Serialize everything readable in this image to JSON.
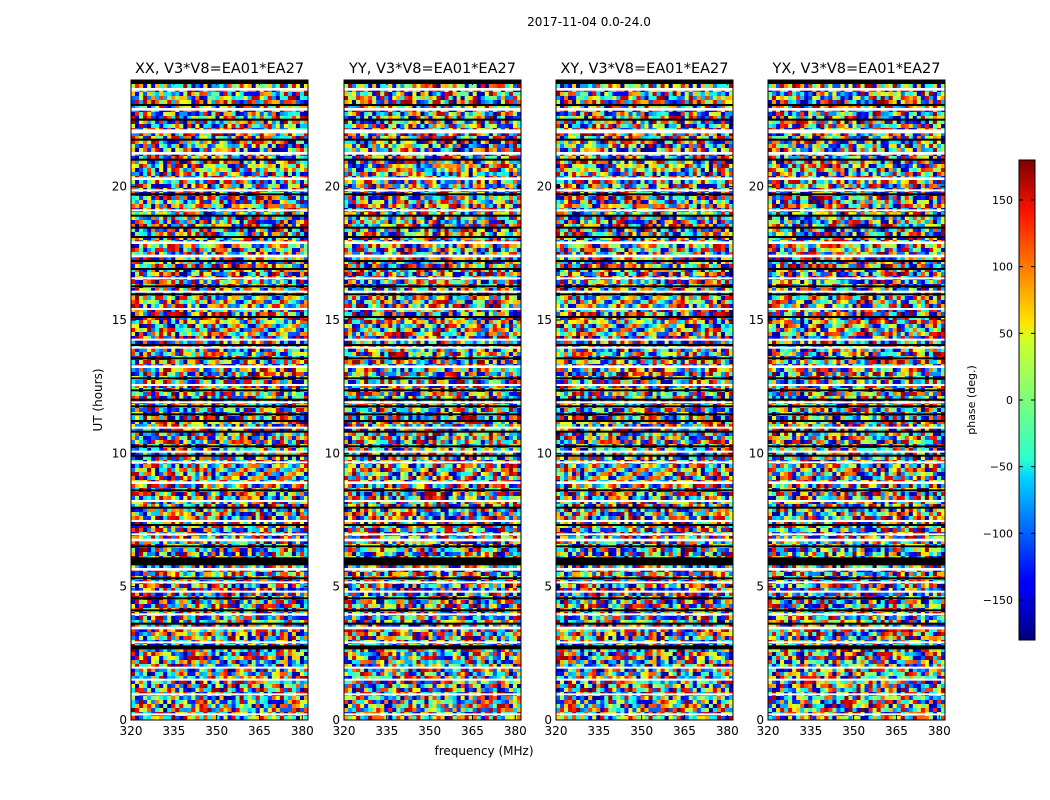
{
  "figure_title": "2017-11-04 0.0-24.0",
  "colors": {
    "background": "#ffffff",
    "axis": "#000000",
    "flag_white": "#ffffff",
    "flag_black": "#000000"
  },
  "chart_data": {
    "type": "heatmap",
    "title": "2017-11-04 0.0-24.0",
    "xlabel": "frequency (MHz)",
    "ylabel": "UT (hours)",
    "xlim": [
      320,
      382
    ],
    "ylim": [
      0,
      24
    ],
    "xticks": [
      320,
      335,
      350,
      365,
      380
    ],
    "yticks": [
      0,
      5,
      10,
      15,
      20
    ],
    "colormap": "jet",
    "colorbar": {
      "label": "phase (deg.)",
      "range": [
        -180,
        180
      ],
      "ticks": [
        150,
        100,
        50,
        0,
        -50,
        -100,
        -150
      ],
      "tick_labels": [
        "150",
        "100",
        "50",
        "0",
        "−50",
        "−100",
        "−150"
      ]
    },
    "panels": [
      {
        "title": "XX, V3*V8=EA01*EA27",
        "show_ylabel": true,
        "show_xlabel": false
      },
      {
        "title": "YY, V3*V8=EA01*EA27",
        "show_ylabel": false,
        "show_xlabel": true
      },
      {
        "title": "XY, V3*V8=EA01*EA27",
        "show_ylabel": false,
        "show_xlabel": false
      },
      {
        "title": "YX, V3*V8=EA01*EA27",
        "show_ylabel": false,
        "show_xlabel": false
      }
    ],
    "flagged_black_ut": [
      [
        23.85,
        24.0
      ],
      [
        23.05,
        23.1
      ],
      [
        22.5,
        22.55
      ],
      [
        21.75,
        21.8
      ],
      [
        21.0,
        21.05
      ],
      [
        19.7,
        19.75
      ],
      [
        18.9,
        18.95
      ],
      [
        18.45,
        18.5
      ],
      [
        18.1,
        18.15
      ],
      [
        17.2,
        17.25
      ],
      [
        16.9,
        16.95
      ],
      [
        16.25,
        16.3
      ],
      [
        15.95,
        16.0
      ],
      [
        15.1,
        15.15
      ],
      [
        14.05,
        14.1
      ],
      [
        13.55,
        13.6
      ],
      [
        12.8,
        12.85
      ],
      [
        12.35,
        12.4
      ],
      [
        12.0,
        12.05
      ],
      [
        11.75,
        11.8
      ],
      [
        11.45,
        11.5
      ],
      [
        11.2,
        11.25
      ],
      [
        10.8,
        10.85
      ],
      [
        10.25,
        10.3
      ],
      [
        9.9,
        9.95
      ],
      [
        8.6,
        8.65
      ],
      [
        7.95,
        8.0
      ],
      [
        7.3,
        7.35
      ],
      [
        6.5,
        6.55
      ],
      [
        5.8,
        6.1
      ],
      [
        5.3,
        5.35
      ],
      [
        4.55,
        4.6
      ],
      [
        4.1,
        4.15
      ],
      [
        3.6,
        3.65
      ],
      [
        2.65,
        2.8
      ]
    ],
    "flagged_white_ut": [
      [
        23.6,
        23.7
      ],
      [
        22.85,
        22.95
      ],
      [
        22.0,
        22.15
      ],
      [
        21.2,
        21.3
      ],
      [
        20.25,
        20.35
      ],
      [
        19.85,
        19.9
      ],
      [
        19.1,
        19.15
      ],
      [
        17.85,
        17.95
      ],
      [
        17.35,
        17.45
      ],
      [
        16.55,
        16.6
      ],
      [
        16.05,
        16.1
      ],
      [
        15.4,
        15.45
      ],
      [
        14.25,
        14.3
      ],
      [
        13.95,
        14.0
      ],
      [
        13.2,
        13.3
      ],
      [
        12.55,
        12.6
      ],
      [
        11.9,
        11.95
      ],
      [
        10.95,
        11.0
      ],
      [
        10.05,
        10.1
      ],
      [
        9.65,
        9.7
      ],
      [
        8.85,
        8.95
      ],
      [
        8.2,
        8.25
      ],
      [
        7.45,
        7.5
      ],
      [
        6.95,
        7.0
      ],
      [
        6.7,
        6.8
      ],
      [
        5.6,
        5.7
      ],
      [
        5.15,
        5.2
      ],
      [
        4.8,
        4.85
      ],
      [
        3.95,
        4.0
      ],
      [
        3.4,
        3.5
      ],
      [
        2.9,
        2.95
      ],
      [
        1.95,
        2.0
      ],
      [
        1.5,
        1.55
      ],
      [
        0.95,
        1.0
      ],
      [
        0.2,
        0.25
      ]
    ]
  }
}
